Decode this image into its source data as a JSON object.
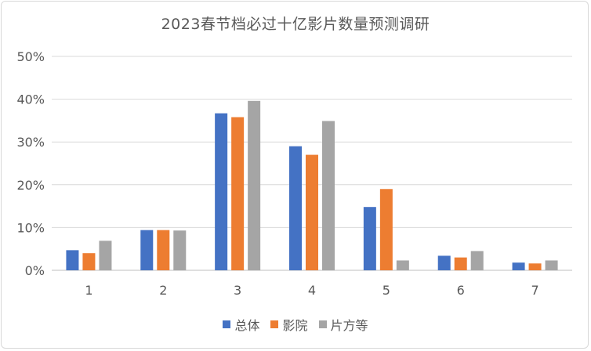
{
  "chart_data": {
    "type": "bar",
    "title": "2023春节档必过十亿影片数量预测调研",
    "xlabel": "",
    "ylabel": "",
    "categories": [
      "1",
      "2",
      "3",
      "4",
      "5",
      "6",
      "7"
    ],
    "ylim": [
      0,
      0.5
    ],
    "yticks": [
      "0%",
      "10%",
      "20%",
      "30%",
      "40%",
      "50%"
    ],
    "grid": true,
    "legend_position": "bottom",
    "series": [
      {
        "name": "总体",
        "color": "#4472c4",
        "values": [
          0.047,
          0.094,
          0.367,
          0.29,
          0.148,
          0.034,
          0.018
        ]
      },
      {
        "name": "影院",
        "color": "#ed7d31",
        "values": [
          0.04,
          0.094,
          0.358,
          0.27,
          0.19,
          0.03,
          0.016
        ]
      },
      {
        "name": "片方等",
        "color": "#a5a5a5",
        "values": [
          0.069,
          0.093,
          0.396,
          0.349,
          0.023,
          0.045,
          0.023
        ]
      }
    ]
  }
}
